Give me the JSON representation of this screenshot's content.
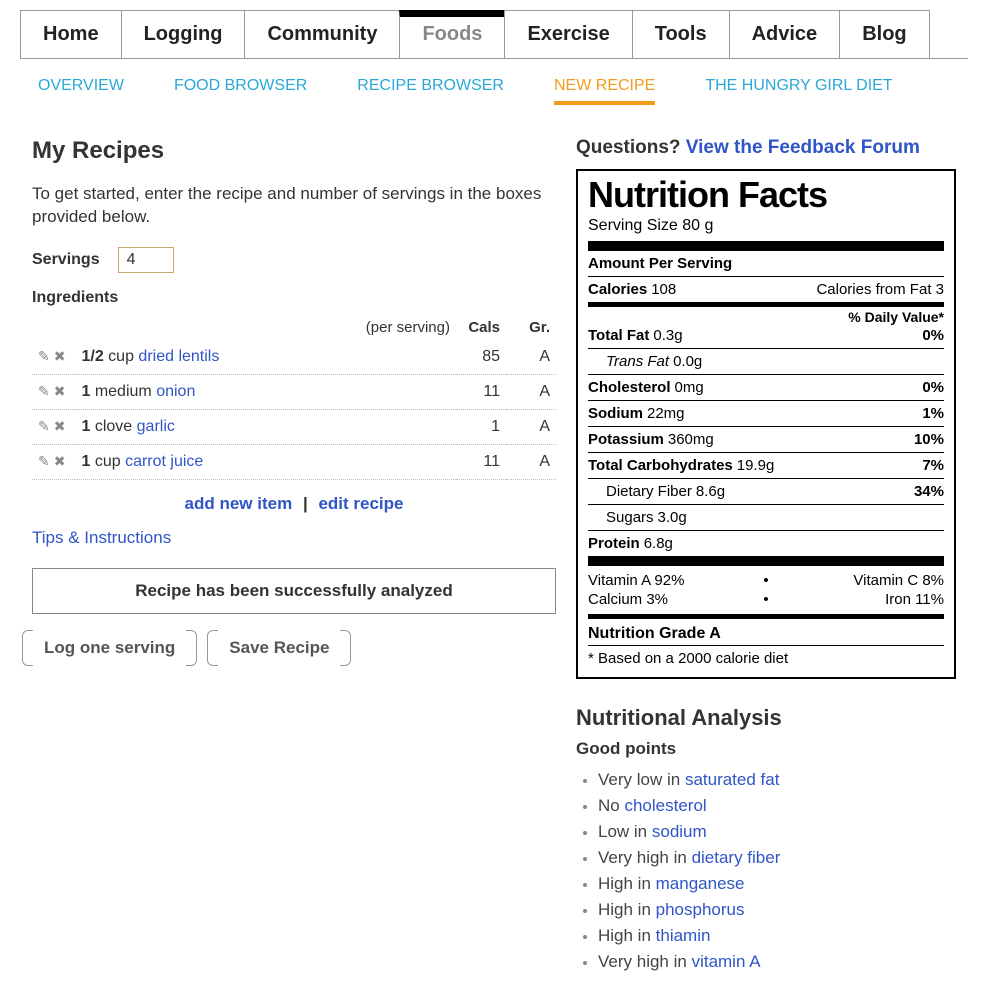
{
  "main_nav": {
    "items": [
      "Home",
      "Logging",
      "Community",
      "Foods",
      "Exercise",
      "Tools",
      "Advice",
      "Blog"
    ],
    "active_index": 3
  },
  "sub_nav": {
    "items": [
      "OVERVIEW",
      "FOOD BROWSER",
      "RECIPE BROWSER",
      "NEW RECIPE",
      "THE HUNGRY GIRL DIET"
    ],
    "active_index": 3
  },
  "left": {
    "title": "My Recipes",
    "intro": "To get started, enter the recipe and number of servings in the boxes provided below.",
    "servings_label": "Servings",
    "servings_value": "4",
    "ingredients_label": "Ingredients",
    "per_serving": "(per serving)",
    "col_cals": "Cals",
    "col_grade": "Gr.",
    "ingredients": [
      {
        "qty": "1/2",
        "unit": "cup",
        "name": "dried lentils",
        "cals": "85",
        "grade": "A"
      },
      {
        "qty": "1",
        "unit": "medium",
        "name": "onion",
        "cals": "11",
        "grade": "A"
      },
      {
        "qty": "1",
        "unit": "clove",
        "name": "garlic",
        "cals": "1",
        "grade": "A"
      },
      {
        "qty": "1",
        "unit": "cup",
        "name": "carrot juice",
        "cals": "11",
        "grade": "A"
      }
    ],
    "add_new_item": "add new item",
    "edit_recipe": "edit recipe",
    "tips": "Tips & Instructions",
    "analyzed_msg": "Recipe has been successfully analyzed",
    "log_btn": "Log one serving",
    "save_btn": "Save Recipe"
  },
  "right": {
    "questions_label": "Questions? ",
    "feedback_link": "View the Feedback Forum",
    "nf": {
      "title": "Nutrition Facts",
      "serving": "Serving Size 80 g",
      "amount_per_serving": "Amount Per Serving",
      "calories_label": "Calories",
      "calories": "108",
      "cal_from_fat": "Calories from Fat 3",
      "dv_head": "% Daily Value*",
      "rows": [
        {
          "lab": "Total Fat",
          "val": "0.3g",
          "dv": "0%",
          "bold": true
        },
        {
          "lab": "Trans Fat",
          "val": "0.0g",
          "dv": "",
          "indent": true,
          "italic": true
        },
        {
          "lab": "Cholesterol",
          "val": "0mg",
          "dv": "0%",
          "bold": true
        },
        {
          "lab": "Sodium",
          "val": "22mg",
          "dv": "1%",
          "bold": true
        },
        {
          "lab": "Potassium",
          "val": "360mg",
          "dv": "10%",
          "bold": true
        },
        {
          "lab": "Total Carbohydrates",
          "val": "19.9g",
          "dv": "7%",
          "bold": true
        },
        {
          "lab": "Dietary Fiber",
          "val": "8.6g",
          "dv": "34%",
          "indent": true
        },
        {
          "lab": "Sugars",
          "val": "3.0g",
          "dv": "",
          "indent": true
        },
        {
          "lab": "Protein",
          "val": "6.8g",
          "dv": "",
          "bold": true
        }
      ],
      "vitamins": [
        {
          "l": "Vitamin A 92%",
          "r": "Vitamin C 8%"
        },
        {
          "l": "Calcium 3%",
          "r": "Iron 11%"
        }
      ],
      "grade": "Nutrition Grade A",
      "footnote": "* Based on a 2000 calorie diet"
    },
    "analysis_title": "Nutritional Analysis",
    "good_points_label": "Good points",
    "good_points": [
      {
        "pre": "Very low in ",
        "link": "saturated fat"
      },
      {
        "pre": "No ",
        "link": "cholesterol"
      },
      {
        "pre": "Low in ",
        "link": "sodium"
      },
      {
        "pre": "Very high in ",
        "link": "dietary fiber"
      },
      {
        "pre": "High in ",
        "link": "manganese"
      },
      {
        "pre": "High in ",
        "link": "phosphorus"
      },
      {
        "pre": "High in ",
        "link": "thiamin"
      },
      {
        "pre": "Very high in ",
        "link": "vitamin A"
      }
    ]
  }
}
